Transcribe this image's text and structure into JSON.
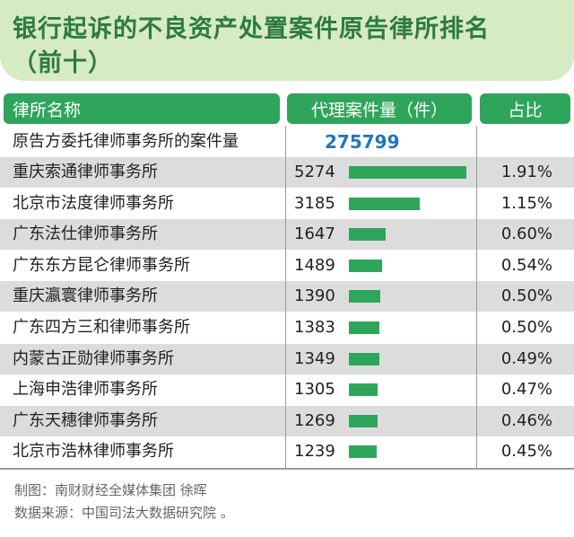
{
  "title_line1": "银行起诉的不良资产处置案件原告律所排名",
  "title_line2": "（前十）",
  "headers": {
    "name": "律所名称",
    "count": "代理案件量（件）",
    "share": "占比"
  },
  "total_row": {
    "label": "原告方委托律师事务所的案件量",
    "value": "275799"
  },
  "colors": {
    "bar": "#2fa55c",
    "header": "#2fa55c",
    "title_bg": "#d6ebc3",
    "title_text": "#2d7a43",
    "total_value": "#2277bb"
  },
  "chart_data": {
    "type": "table",
    "columns": [
      "律所名称",
      "代理案件量（件）",
      "占比"
    ],
    "bar_max": 5274,
    "rows": [
      {
        "name": "重庆索通律师事务所",
        "count": 5274,
        "count_text": "5274",
        "share": "1.91%"
      },
      {
        "name": "北京市法度律师事务所",
        "count": 3185,
        "count_text": "3185",
        "share": "1.15%"
      },
      {
        "name": "广东法仕律师事务所",
        "count": 1647,
        "count_text": "1647",
        "share": "0.60%"
      },
      {
        "name": "广东东方昆仑律师事务所",
        "count": 1489,
        "count_text": "1489",
        "share": "0.54%"
      },
      {
        "name": "重庆瀛寰律师事务所",
        "count": 1390,
        "count_text": "1390",
        "share": "0.50%"
      },
      {
        "name": "广东四方三和律师事务所",
        "count": 1383,
        "count_text": "1383",
        "share": "0.50%"
      },
      {
        "name": "内蒙古正勋律师事务所",
        "count": 1349,
        "count_text": "1349",
        "share": "0.49%"
      },
      {
        "name": "上海申浩律师事务所",
        "count": 1305,
        "count_text": "1305",
        "share": "0.47%"
      },
      {
        "name": "广东天穗律师事务所",
        "count": 1269,
        "count_text": "1269",
        "share": "0.46%"
      },
      {
        "name": "北京市浩林律师事务所",
        "count": 1239,
        "count_text": "1239",
        "share": "0.45%"
      }
    ]
  },
  "footer": {
    "credit": "制图：南财财经全媒体集团 徐晖",
    "source": "数据来源：中国司法大数据研究院 。"
  }
}
